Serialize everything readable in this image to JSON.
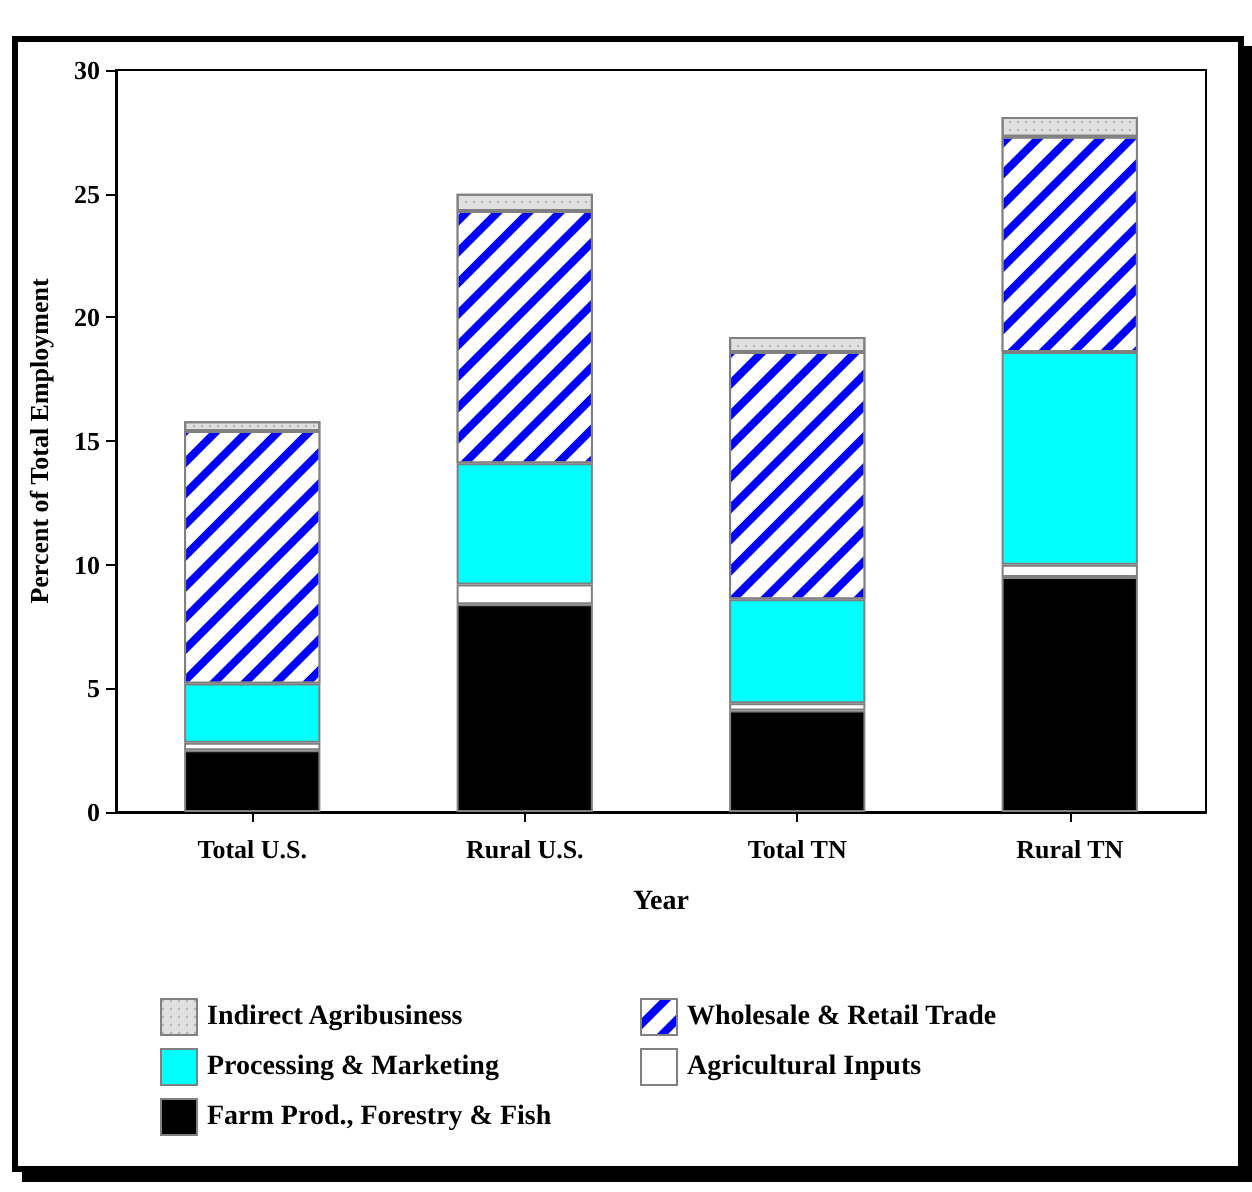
{
  "chart_data": {
    "type": "bar",
    "stacked": true,
    "xlabel": "Year",
    "ylabel": "Percent of Total Employment",
    "categories": [
      "Total U.S.",
      "Rural U.S.",
      "Total TN",
      "Rural TN"
    ],
    "ylim": [
      0,
      30
    ],
    "yticks": [
      0,
      5,
      10,
      15,
      20,
      25,
      30
    ],
    "grid": false,
    "legend": "bottom",
    "series": [
      {
        "name": "Farm Prod., Forestry & Fish",
        "color": "#000000",
        "values": [
          2.5,
          8.4,
          4.1,
          9.5
        ]
      },
      {
        "name": "Agricultural Inputs",
        "color": "#ffffff",
        "values": [
          0.3,
          0.8,
          0.3,
          0.5
        ]
      },
      {
        "name": "Processing & Marketing",
        "color": "#00ffff",
        "values": [
          2.4,
          4.9,
          4.2,
          8.6
        ]
      },
      {
        "name": "Wholesale & Retail Trade",
        "color": "#0000ff",
        "values": [
          10.2,
          10.2,
          10.0,
          8.7
        ]
      },
      {
        "name": "Indirect Agribusiness",
        "color": "#e0e0e0",
        "values": [
          0.4,
          0.7,
          0.6,
          0.8
        ]
      }
    ]
  }
}
